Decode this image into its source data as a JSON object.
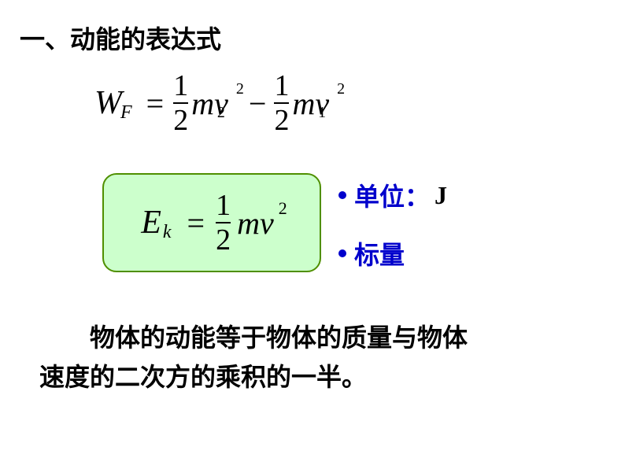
{
  "section": {
    "title": "一、动能的表达式"
  },
  "work_formula": {
    "lhs_var": "W",
    "lhs_sub": "F",
    "equals": "=",
    "term1_frac_num": "1",
    "term1_frac_den": "2",
    "term1_mv": "mv",
    "term1_sub": "2",
    "term1_sup": "2",
    "minus": "−",
    "term2_frac_num": "1",
    "term2_frac_den": "2",
    "term2_mv": "mv",
    "term2_sub": "1",
    "term2_sup": "2"
  },
  "ek_formula": {
    "lhs_var": "E",
    "lhs_sub": "k",
    "equals": "=",
    "frac_num": "1",
    "frac_den": "2",
    "mv": "mv",
    "sup": "2",
    "box_bg": "#ccffcc",
    "box_border": "#4f8f00"
  },
  "bullets": {
    "unit_label": "单位：",
    "unit_value": "J",
    "scalar_label": "标量",
    "color": "#0000cc"
  },
  "description": {
    "line1": "物体的动能等于物体的质量与物体",
    "line2": "速度的二次方的乘积的一半。"
  }
}
